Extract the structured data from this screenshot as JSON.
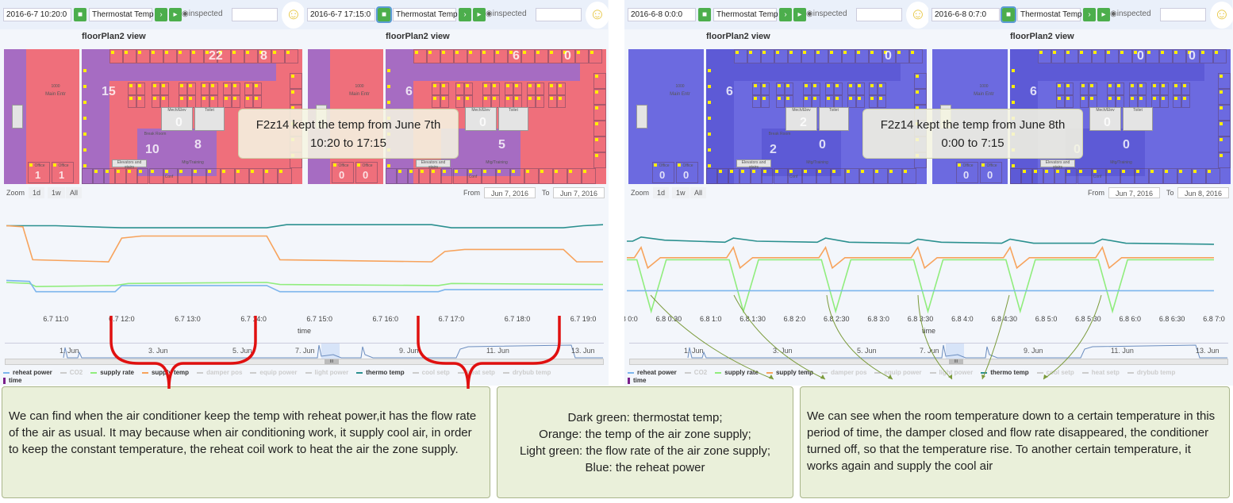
{
  "colors": {
    "green_btn": "#4cae4c",
    "thermo": "#2b908f",
    "supply_temp": "#f7a35c",
    "supply_rate": "#90ed7d",
    "reheat": "#7cb5ec",
    "pink": "#ef6f7b",
    "purple": "#a66cc2",
    "blue": "#6c6ae0",
    "blue_dark": "#5d5ad6",
    "brace": "#e01010",
    "arrow": "#7a9a3a",
    "note_bg": "#eaf0da"
  },
  "panels": [
    {
      "views": [
        {
          "datetime": "2016-6-7 10:20:0",
          "sensor": "Thermostat Temp",
          "inspected": "inspected",
          "title": "floorPlan2 view",
          "camera_selected": false,
          "scheme": "warm",
          "strip_labels": {
            "room": "1000",
            "name": "Main Entr",
            "office1": "Office",
            "office2": "Office"
          },
          "office_nums": [
            "1",
            "1"
          ],
          "nums": [
            "22",
            "8",
            "15",
            "0",
            "8",
            "10"
          ],
          "rooms": {
            "mech": "Mech/Elev",
            "toilet": "Toilet",
            "training": "Mtg/Training",
            "break": "Break Room",
            "conf": "Conf",
            "elev": "Elevators and stairs"
          }
        },
        {
          "datetime": "2016-6-7 17:15:0",
          "sensor": "Thermostat Temp",
          "inspected": "inspected",
          "title": "floorPlan2 view",
          "camera_selected": true,
          "scheme": "warm2",
          "strip_labels": {
            "room": "1000",
            "name": "Main Entr",
            "office1": "Office",
            "office2": "Office"
          },
          "office_nums": [
            "0",
            "0"
          ],
          "nums": [
            "6",
            "0",
            "6",
            "0",
            "5",
            ""
          ],
          "rooms": {
            "mech": "Mech/Elev",
            "toilet": "Toilet",
            "training": "Mtg/Training",
            "break": "",
            "conf": "Conf",
            "elev": "Elevators and stairs"
          }
        }
      ],
      "overlay": [
        "F2z14 kept the temp from June 7th",
        "10:20 to 17:15"
      ],
      "zoom": {
        "label": "Zoom",
        "buttons": [
          "1d",
          "1w",
          "All"
        ],
        "from_label": "From",
        "from": "Jun 7, 2016",
        "to_label": "To",
        "to": "Jun 7, 2016"
      },
      "chart_data": {
        "type": "line",
        "xlabel": "time",
        "xrange": [
          10.25,
          19.3
        ],
        "ticks": [
          {
            "h": 11,
            "label": "6.7 11:0"
          },
          {
            "h": 12,
            "label": "6.7 12:0"
          },
          {
            "h": 13,
            "label": "6.7 13:0"
          },
          {
            "h": 14,
            "label": "6.7 14:0"
          },
          {
            "h": 15,
            "label": "6.7 15:0"
          },
          {
            "h": 16,
            "label": "6.7 16:0"
          },
          {
            "h": 17,
            "label": "6.7 17:0"
          },
          {
            "h": 18,
            "label": "6.7 18:0"
          },
          {
            "h": 19,
            "label": "6.7 19:0"
          }
        ],
        "series": [
          {
            "name": "thermo temp",
            "color": "#2b908f",
            "points": [
              [
                10.25,
                85
              ],
              [
                11,
                85
              ],
              [
                12,
                83
              ],
              [
                14.2,
                83
              ],
              [
                14.5,
                86
              ],
              [
                16.7,
                86
              ],
              [
                17,
                83
              ],
              [
                18.7,
                83
              ],
              [
                19,
                85
              ],
              [
                19.3,
                86
              ]
            ]
          },
          {
            "name": "supply temp",
            "color": "#f7a35c",
            "points": [
              [
                10.25,
                85
              ],
              [
                10.5,
                84
              ],
              [
                10.65,
                52
              ],
              [
                11.8,
                50
              ],
              [
                12,
                73
              ],
              [
                12.3,
                75
              ],
              [
                14.2,
                75
              ],
              [
                14.4,
                52
              ],
              [
                16.7,
                50
              ],
              [
                16.9,
                60
              ],
              [
                17.2,
                62
              ],
              [
                18.7,
                62
              ],
              [
                18.9,
                50
              ],
              [
                19.3,
                50
              ]
            ]
          },
          {
            "name": "supply rate",
            "color": "#90ed7d",
            "points": [
              [
                10.25,
                30
              ],
              [
                10.6,
                29
              ],
              [
                10.7,
                26
              ],
              [
                11.9,
                27
              ],
              [
                12.1,
                29
              ],
              [
                14.2,
                30
              ],
              [
                14.4,
                28
              ],
              [
                16.8,
                27
              ],
              [
                17,
                29
              ],
              [
                19.3,
                28
              ]
            ]
          },
          {
            "name": "reheat power",
            "color": "#7cb5ec",
            "points": [
              [
                10.25,
                32
              ],
              [
                10.6,
                31
              ],
              [
                10.7,
                21
              ],
              [
                11.9,
                21
              ],
              [
                12,
                27
              ],
              [
                14.2,
                27
              ],
              [
                14.4,
                21
              ],
              [
                16.8,
                21
              ],
              [
                16.9,
                23
              ],
              [
                19.3,
                23
              ]
            ]
          }
        ]
      }
    },
    {
      "views": [
        {
          "datetime": "2016-6-8 0:0:0",
          "sensor": "Thermostat Temp",
          "inspected": "inspected",
          "title": "floorPlan2 view",
          "camera_selected": false,
          "scheme": "cool",
          "strip_labels": {
            "room": "1000",
            "name": "Main Entr",
            "office1": "Office",
            "office2": "Office"
          },
          "office_nums": [
            "0",
            "0"
          ],
          "nums": [
            "",
            "0",
            "6",
            "2",
            "0",
            "2"
          ],
          "rooms": {
            "mech": "Mech/Elev",
            "toilet": "Toilet",
            "training": "Mtg/Training",
            "break": "Break Room",
            "conf": "Conf",
            "elev": "Elevators and stairs"
          }
        },
        {
          "datetime": "2016-6-8 0:7:0",
          "sensor": "Thermostat Temp",
          "inspected": "inspected",
          "title": "floorPlan2 view",
          "camera_selected": true,
          "scheme": "cool",
          "strip_labels": {
            "room": "1000",
            "name": "Main Entr",
            "office1": "Office",
            "office2": "Office"
          },
          "office_nums": [
            "0",
            "0"
          ],
          "nums": [
            "0",
            "0",
            "6",
            "0",
            "0",
            "0"
          ],
          "rooms": {
            "mech": "Mech/Elev",
            "toilet": "Toilet",
            "training": "Mtg/Training",
            "break": "",
            "conf": "Conf",
            "elev": "Elevators and stairs"
          }
        }
      ],
      "overlay": [
        "F2z14 kept the temp from June 8th",
        "0:00 to 7:15"
      ],
      "zoom": {
        "label": "Zoom",
        "buttons": [
          "1d",
          "1w",
          "All"
        ],
        "from_label": "From",
        "from": "Jun 7, 2016",
        "to_label": "To",
        "to": "Jun 8, 2016"
      },
      "chart_data": {
        "type": "line",
        "xlabel": "time",
        "xrange": [
          0,
          7
        ],
        "ticks": [
          {
            "h": 0,
            "label": "6.8 0:0"
          },
          {
            "h": 0.5,
            "label": "6.8 0:30"
          },
          {
            "h": 1,
            "label": "6.8 1:0"
          },
          {
            "h": 1.5,
            "label": "6.8 1:30"
          },
          {
            "h": 2,
            "label": "6.8 2:0"
          },
          {
            "h": 2.5,
            "label": "6.8 2:30"
          },
          {
            "h": 3,
            "label": "6.8 3:0"
          },
          {
            "h": 3.5,
            "label": "6.8 3:30"
          },
          {
            "h": 4,
            "label": "6.8 4:0"
          },
          {
            "h": 4.5,
            "label": "6.8 4:30"
          },
          {
            "h": 5,
            "label": "6.8 5:0"
          },
          {
            "h": 5.5,
            "label": "6.8 5:30"
          },
          {
            "h": 6,
            "label": "6.8 6:0"
          },
          {
            "h": 6.5,
            "label": "6.8 6:30"
          },
          {
            "h": 7,
            "label": "6.8 7:0"
          }
        ],
        "series": [
          {
            "name": "thermo temp",
            "color": "#2b908f",
            "points": [
              [
                0,
                70
              ],
              [
                0.07,
                70
              ],
              [
                0.17,
                74
              ],
              [
                0.45,
                71
              ],
              [
                1.17,
                69
              ],
              [
                1.27,
                73
              ],
              [
                1.55,
                70
              ],
              [
                2.27,
                69
              ],
              [
                2.37,
                73
              ],
              [
                2.65,
                69
              ],
              [
                3.37,
                68
              ],
              [
                3.47,
                72
              ],
              [
                3.75,
                69
              ],
              [
                4.47,
                68
              ],
              [
                4.57,
                72
              ],
              [
                4.85,
                68
              ],
              [
                5.57,
                68
              ],
              [
                5.67,
                72
              ],
              [
                5.95,
                68
              ],
              [
                7,
                67
              ]
            ]
          },
          {
            "name": "supply temp",
            "color": "#f7a35c",
            "points": [
              [
                0,
                54
              ],
              [
                0.09,
                54
              ],
              [
                0.17,
                64
              ],
              [
                0.25,
                44
              ],
              [
                0.4,
                54
              ],
              [
                1.19,
                54
              ],
              [
                1.27,
                64
              ],
              [
                1.35,
                44
              ],
              [
                1.5,
                54
              ],
              [
                2.29,
                54
              ],
              [
                2.37,
                64
              ],
              [
                2.45,
                44
              ],
              [
                2.6,
                54
              ],
              [
                3.39,
                54
              ],
              [
                3.47,
                64
              ],
              [
                3.55,
                44
              ],
              [
                3.7,
                54
              ],
              [
                4.49,
                54
              ],
              [
                4.57,
                64
              ],
              [
                4.65,
                44
              ],
              [
                4.8,
                54
              ],
              [
                5.59,
                54
              ],
              [
                5.67,
                64
              ],
              [
                5.75,
                44
              ],
              [
                5.9,
                54
              ],
              [
                7,
                54
              ]
            ]
          },
          {
            "name": "supply rate",
            "color": "#90ed7d",
            "points": [
              [
                0,
                52
              ],
              [
                0.12,
                52
              ],
              [
                0.29,
                2
              ],
              [
                0.47,
                52
              ],
              [
                1.22,
                52
              ],
              [
                1.39,
                2
              ],
              [
                1.57,
                52
              ],
              [
                2.32,
                52
              ],
              [
                2.49,
                2
              ],
              [
                2.67,
                52
              ],
              [
                3.42,
                52
              ],
              [
                3.59,
                2
              ],
              [
                3.77,
                52
              ],
              [
                4.52,
                52
              ],
              [
                4.69,
                2
              ],
              [
                4.87,
                52
              ],
              [
                5.62,
                52
              ],
              [
                5.79,
                2
              ],
              [
                5.97,
                52
              ],
              [
                7,
                52
              ]
            ]
          },
          {
            "name": "reheat power",
            "color": "#7cb5ec",
            "points": [
              [
                0,
                22
              ],
              [
                7,
                22
              ]
            ]
          }
        ]
      }
    }
  ],
  "navigator": {
    "ticks": [
      "1. Jun",
      "3. Jun",
      "5. Jun",
      "7. Jun",
      "9. Jun",
      "11. Jun",
      "13. Jun"
    ],
    "handle": "III"
  },
  "legend": {
    "items": [
      {
        "label": "reheat power",
        "color": "#7cb5ec",
        "on": true
      },
      {
        "label": "CO2",
        "color": "#ccc",
        "on": false
      },
      {
        "label": "supply rate",
        "color": "#90ed7d",
        "on": true
      },
      {
        "label": "supply temp",
        "color": "#f7a35c",
        "on": true
      },
      {
        "label": "damper pos",
        "color": "#ccc",
        "on": false
      },
      {
        "label": "equip power",
        "color": "#ccc",
        "on": false
      },
      {
        "label": "light power",
        "color": "#ccc",
        "on": false
      },
      {
        "label": "thermo temp",
        "color": "#2b908f",
        "on": true
      },
      {
        "label": "cool setp",
        "color": "#ccc",
        "on": false
      },
      {
        "label": "heat setp",
        "color": "#ccc",
        "on": false
      },
      {
        "label": "drybub temp",
        "color": "#ccc",
        "on": false
      }
    ],
    "time_label": "time"
  },
  "notes": [
    "We can find when the air conditioner keep the temp with reheat power,it has the flow rate of the air as usual. It may because when air conditioning work, it supply cool air, in order to keep the constant temperature, the reheat coil work to heat the air the zone supply.",
    [
      "Dark green: thermostat temp;",
      "Orange: the temp of the air zone supply;",
      "Light green: the flow rate of the air zone supply;",
      "Blue: the reheat power"
    ],
    "We can see when the room temperature down to a certain temperature in this period of time, the damper closed and flow rate disappeared, the conditioner turned off, so that the temperature rise. To another certain temperature, it works again and supply the cool air"
  ]
}
